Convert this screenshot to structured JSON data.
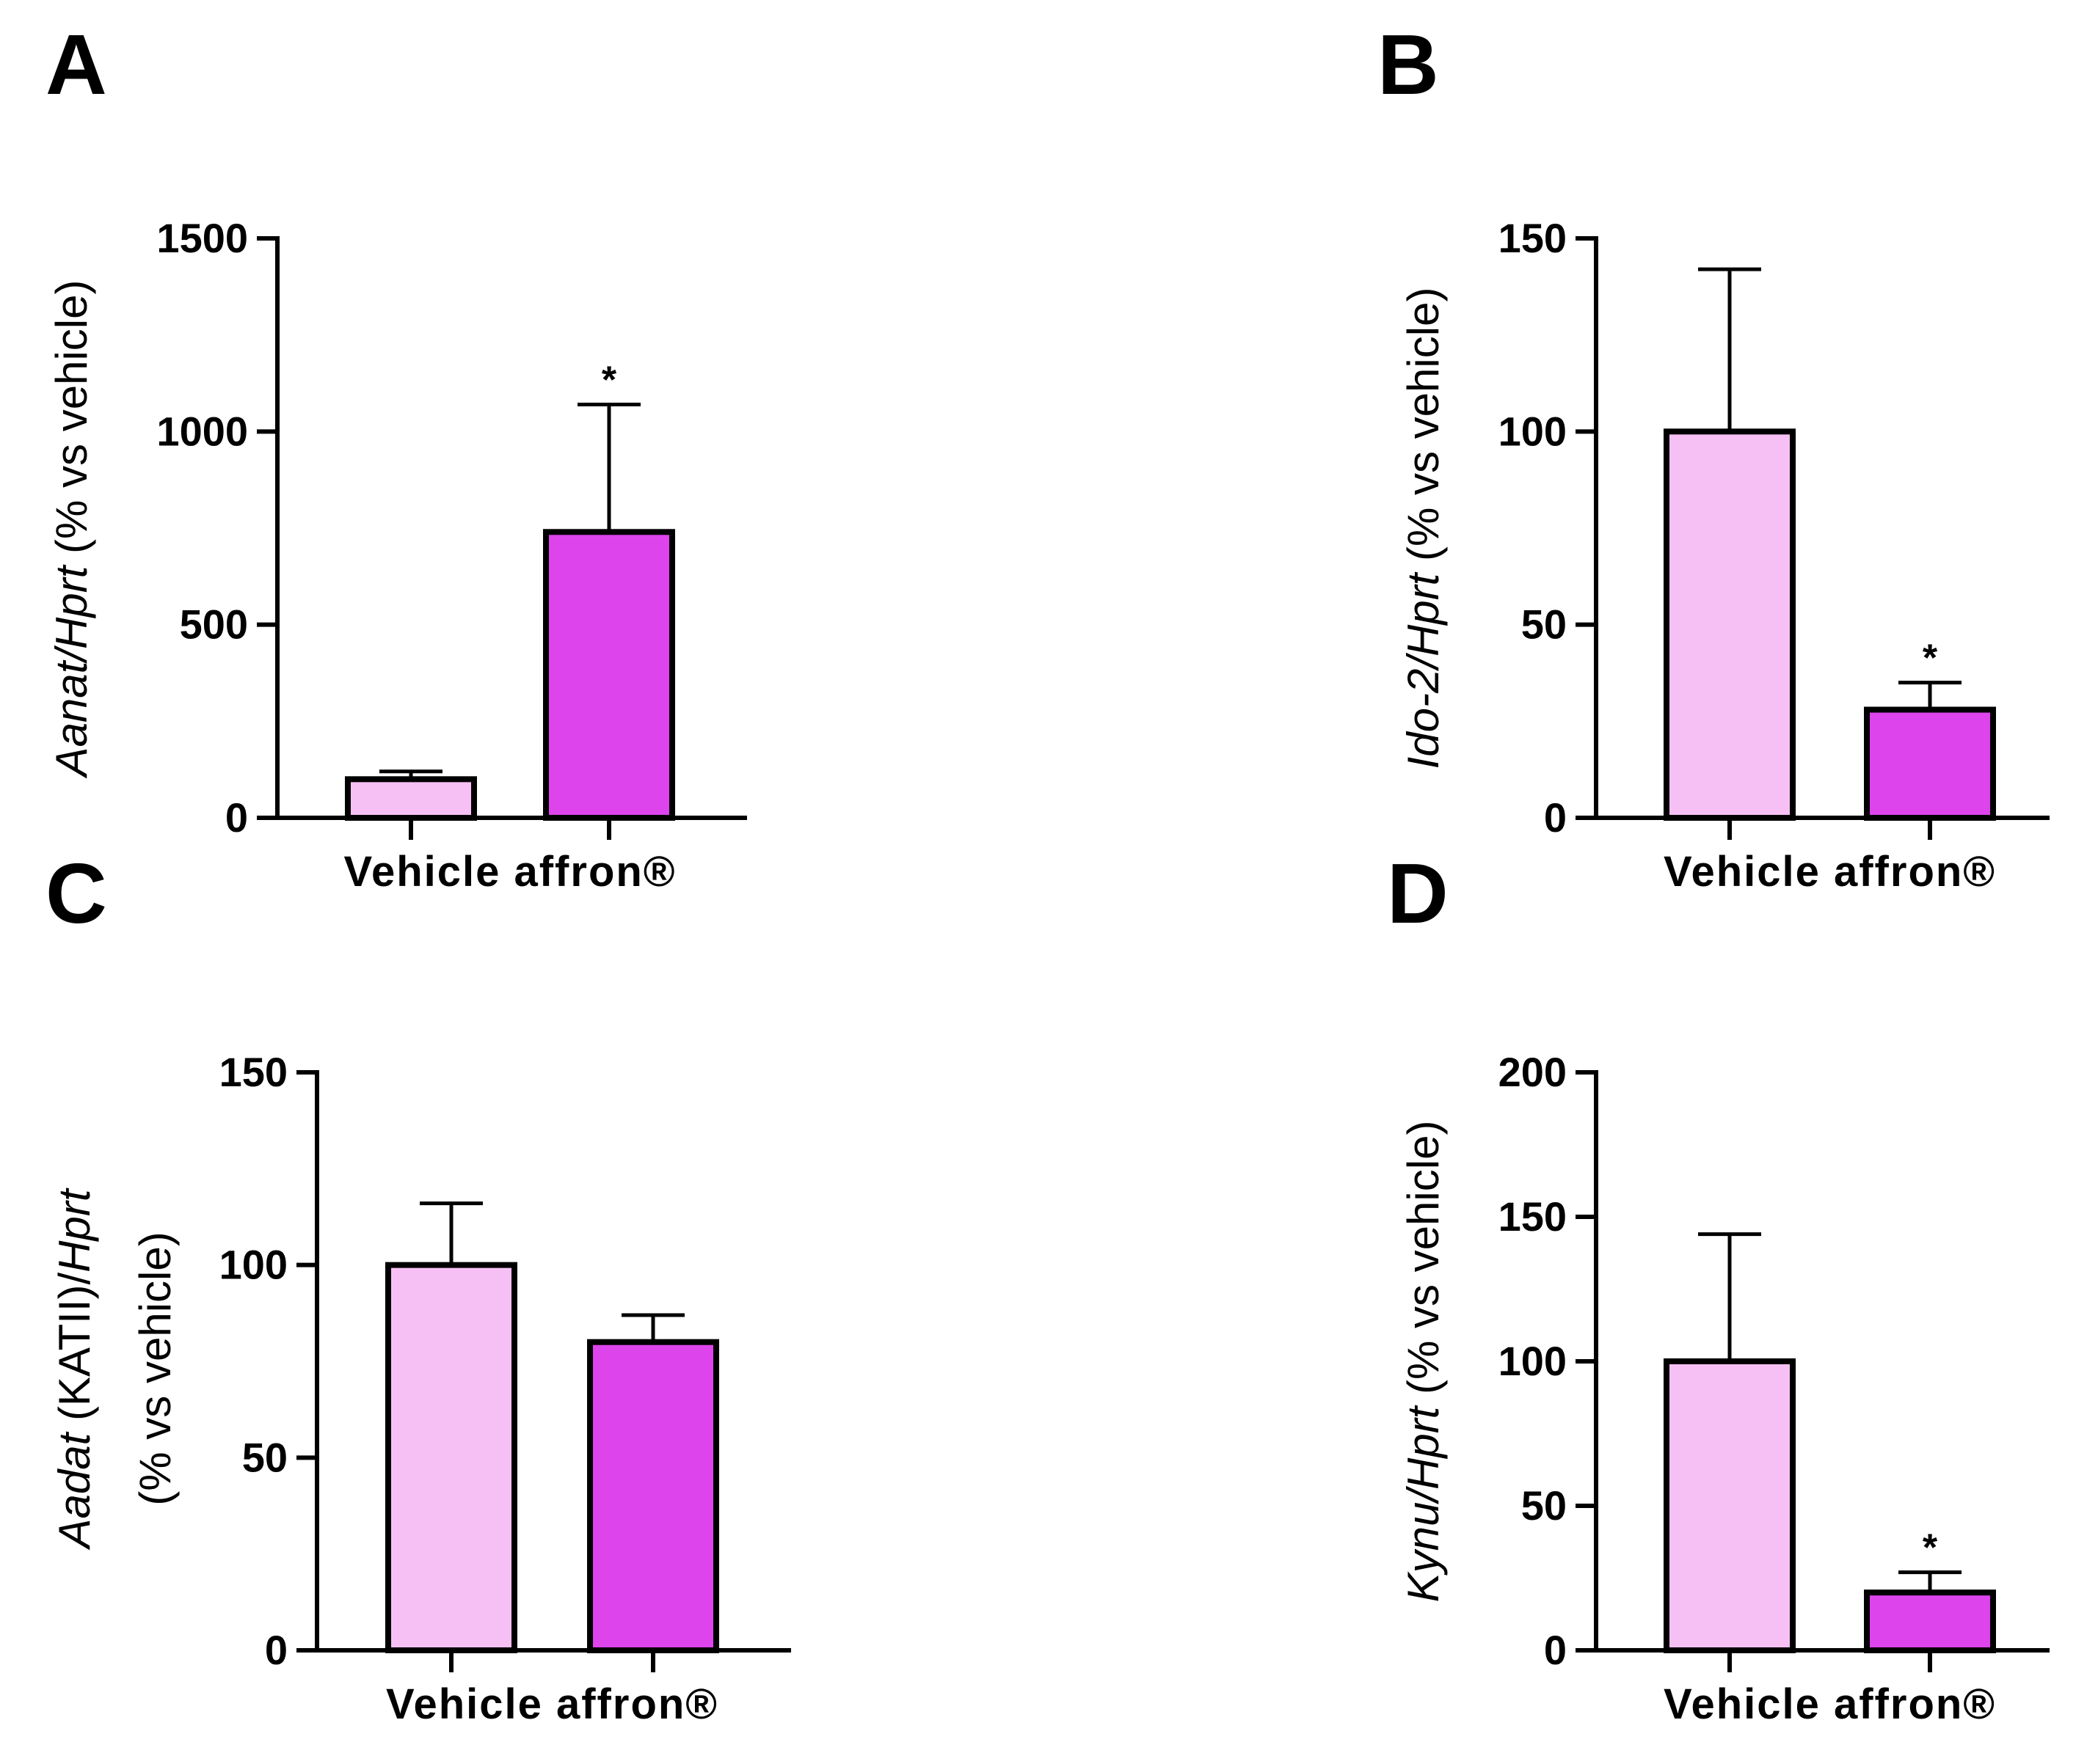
{
  "colors": {
    "vehicle": "#f7c0f4",
    "affron": "#dd44ec",
    "outline": "#000000"
  },
  "categories": [
    "Vehicle",
    "affron®"
  ],
  "chart_data": [
    {
      "panel": "A",
      "type": "bar",
      "categories": [
        "Vehicle",
        "affron®"
      ],
      "values": [
        100,
        740
      ],
      "error_plus": [
        20,
        330
      ],
      "significance": [
        "",
        "*"
      ],
      "ylim": [
        0,
        1500
      ],
      "yticks": [
        0,
        500,
        1000,
        1500
      ],
      "ylabel_italic": "Aanat/Hprt",
      "ylabel_plain": " (% vs vehicle)",
      "grid": false,
      "legend": "none"
    },
    {
      "panel": "B",
      "type": "bar",
      "categories": [
        "Vehicle",
        "affron®"
      ],
      "values": [
        100,
        28
      ],
      "error_plus": [
        42,
        7
      ],
      "significance": [
        "",
        "*"
      ],
      "ylim": [
        0,
        150
      ],
      "yticks": [
        0,
        50,
        100,
        150
      ],
      "ylabel_italic": "Ido-2/Hprt",
      "ylabel_plain": " (% vs vehicle)",
      "grid": false,
      "legend": "none"
    },
    {
      "panel": "C",
      "type": "bar",
      "categories": [
        "Vehicle",
        "affron®"
      ],
      "values": [
        100,
        80
      ],
      "error_plus": [
        16,
        7
      ],
      "significance": [
        "",
        ""
      ],
      "ylim": [
        0,
        150
      ],
      "yticks": [
        0,
        50,
        100,
        150
      ],
      "ylabel_italic": "Aadat",
      "ylabel_plain": " (KATII)/",
      "ylabel_italic2": "Hprt",
      "ylabel_line2": "(% vs vehicle)",
      "grid": false,
      "legend": "none"
    },
    {
      "panel": "D",
      "type": "bar",
      "categories": [
        "Vehicle",
        "affron®"
      ],
      "values": [
        100,
        20
      ],
      "error_plus": [
        44,
        7
      ],
      "significance": [
        "",
        "*"
      ],
      "ylim": [
        0,
        200
      ],
      "yticks": [
        0,
        50,
        100,
        150,
        200
      ],
      "ylabel_italic": "Kynu/Hprt",
      "ylabel_plain": " (% vs vehicle)",
      "grid": false,
      "legend": "none"
    }
  ]
}
